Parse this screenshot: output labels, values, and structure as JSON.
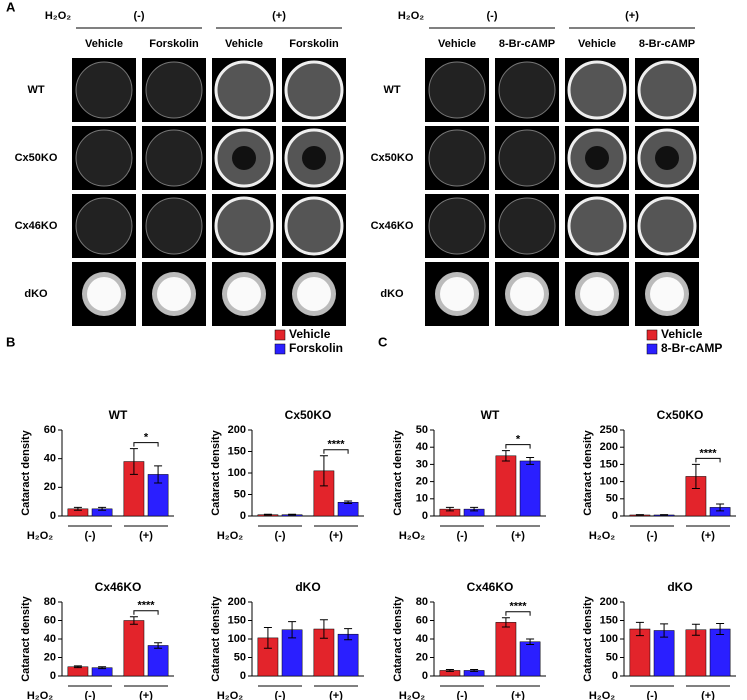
{
  "panel_a": {
    "label": "A",
    "rows": [
      "WT",
      "Cx50KO",
      "Cx46KO",
      "dKO"
    ],
    "left": {
      "treatment": "H₂O₂",
      "groups": [
        "(-)",
        "(+)"
      ],
      "columns": [
        "Vehicle",
        "Forskolin",
        "Vehicle",
        "Forskolin"
      ]
    },
    "right": {
      "treatment": "H₂O₂",
      "groups": [
        "(-)",
        "(+)"
      ],
      "columns": [
        "Vehicle",
        "8-Br-cAMP",
        "Vehicle",
        "8-Br-cAMP"
      ]
    }
  },
  "panel_labels": [
    "B",
    "C"
  ],
  "chart_data": [
    {
      "type": "bar",
      "title": "WT",
      "ylabel": "Cataract density",
      "xlabel": "H₂O₂",
      "categories": [
        "(-)",
        "(+)"
      ],
      "series": [
        {
          "name": "Vehicle",
          "color": "#e3242b",
          "values": [
            5,
            38
          ],
          "errors": [
            1,
            9
          ]
        },
        {
          "name": "Forskolin",
          "color": "#2a1fff",
          "values": [
            5,
            29
          ],
          "errors": [
            1,
            6
          ]
        }
      ],
      "ylim": [
        0,
        60
      ],
      "yticks": [
        0,
        20,
        40,
        60
      ],
      "significance": "*"
    },
    {
      "type": "bar",
      "title": "Cx50KO",
      "ylabel": "Cataract density",
      "xlabel": "H₂O₂",
      "categories": [
        "(-)",
        "(+)"
      ],
      "series": [
        {
          "name": "Vehicle",
          "color": "#e3242b",
          "values": [
            3,
            105
          ],
          "errors": [
            1,
            35
          ]
        },
        {
          "name": "Forskolin",
          "color": "#2a1fff",
          "values": [
            3,
            32
          ],
          "errors": [
            1,
            3
          ]
        }
      ],
      "ylim": [
        0,
        200
      ],
      "yticks": [
        0,
        50,
        100,
        150,
        200
      ],
      "significance": "****"
    },
    {
      "type": "bar",
      "title": "Cx46KO",
      "ylabel": "Cataract density",
      "xlabel": "H₂O₂",
      "categories": [
        "(-)",
        "(+)"
      ],
      "series": [
        {
          "name": "Vehicle",
          "color": "#e3242b",
          "values": [
            10,
            60
          ],
          "errors": [
            1,
            4
          ]
        },
        {
          "name": "Forskolin",
          "color": "#2a1fff",
          "values": [
            9,
            33
          ],
          "errors": [
            1,
            3
          ]
        }
      ],
      "ylim": [
        0,
        80
      ],
      "yticks": [
        0,
        20,
        40,
        60,
        80
      ],
      "significance": "****"
    },
    {
      "type": "bar",
      "title": "dKO",
      "ylabel": "Cataract density",
      "xlabel": "H₂O₂",
      "categories": [
        "(-)",
        "(+)"
      ],
      "series": [
        {
          "name": "Vehicle",
          "color": "#e3242b",
          "values": [
            103,
            127
          ],
          "errors": [
            28,
            25
          ]
        },
        {
          "name": "Forskolin",
          "color": "#2a1fff",
          "values": [
            125,
            113
          ],
          "errors": [
            22,
            15
          ]
        }
      ],
      "ylim": [
        0,
        200
      ],
      "yticks": [
        0,
        50,
        100,
        150,
        200
      ]
    },
    {
      "type": "bar",
      "title": "WT",
      "ylabel": "Cataract density",
      "xlabel": "H₂O₂",
      "categories": [
        "(-)",
        "(+)"
      ],
      "series": [
        {
          "name": "Vehicle",
          "color": "#e3242b",
          "values": [
            4,
            35
          ],
          "errors": [
            1,
            3
          ]
        },
        {
          "name": "8-Br-cAMP",
          "color": "#2a1fff",
          "values": [
            4,
            32
          ],
          "errors": [
            1,
            2
          ]
        }
      ],
      "ylim": [
        0,
        50
      ],
      "yticks": [
        0,
        10,
        20,
        30,
        40,
        50
      ],
      "significance": "*"
    },
    {
      "type": "bar",
      "title": "Cx50KO",
      "ylabel": "Cataract density",
      "xlabel": "H₂O₂",
      "categories": [
        "(-)",
        "(+)"
      ],
      "series": [
        {
          "name": "Vehicle",
          "color": "#e3242b",
          "values": [
            3,
            115
          ],
          "errors": [
            1,
            35
          ]
        },
        {
          "name": "8-Br-cAMP",
          "color": "#2a1fff",
          "values": [
            3,
            25
          ],
          "errors": [
            1,
            10
          ]
        }
      ],
      "ylim": [
        0,
        250
      ],
      "yticks": [
        0,
        50,
        100,
        150,
        200,
        250
      ],
      "significance": "****"
    },
    {
      "type": "bar",
      "title": "Cx46KO",
      "ylabel": "Cataract density",
      "xlabel": "H₂O₂",
      "categories": [
        "(-)",
        "(+)"
      ],
      "series": [
        {
          "name": "Vehicle",
          "color": "#e3242b",
          "values": [
            6,
            58
          ],
          "errors": [
            1,
            5
          ]
        },
        {
          "name": "8-Br-cAMP",
          "color": "#2a1fff",
          "values": [
            6,
            37
          ],
          "errors": [
            1,
            3
          ]
        }
      ],
      "ylim": [
        0,
        80
      ],
      "yticks": [
        0,
        20,
        40,
        60,
        80
      ],
      "significance": "****"
    },
    {
      "type": "bar",
      "title": "dKO",
      "ylabel": "Cataract density",
      "xlabel": "H₂O₂",
      "categories": [
        "(-)",
        "(+)"
      ],
      "series": [
        {
          "name": "Vehicle",
          "color": "#e3242b",
          "values": [
            127,
            125
          ],
          "errors": [
            18,
            15
          ]
        },
        {
          "name": "8-Br-cAMP",
          "color": "#2a1fff",
          "values": [
            123,
            127
          ],
          "errors": [
            18,
            15
          ]
        }
      ],
      "ylim": [
        0,
        200
      ],
      "yticks": [
        0,
        50,
        100,
        150,
        200
      ]
    }
  ]
}
